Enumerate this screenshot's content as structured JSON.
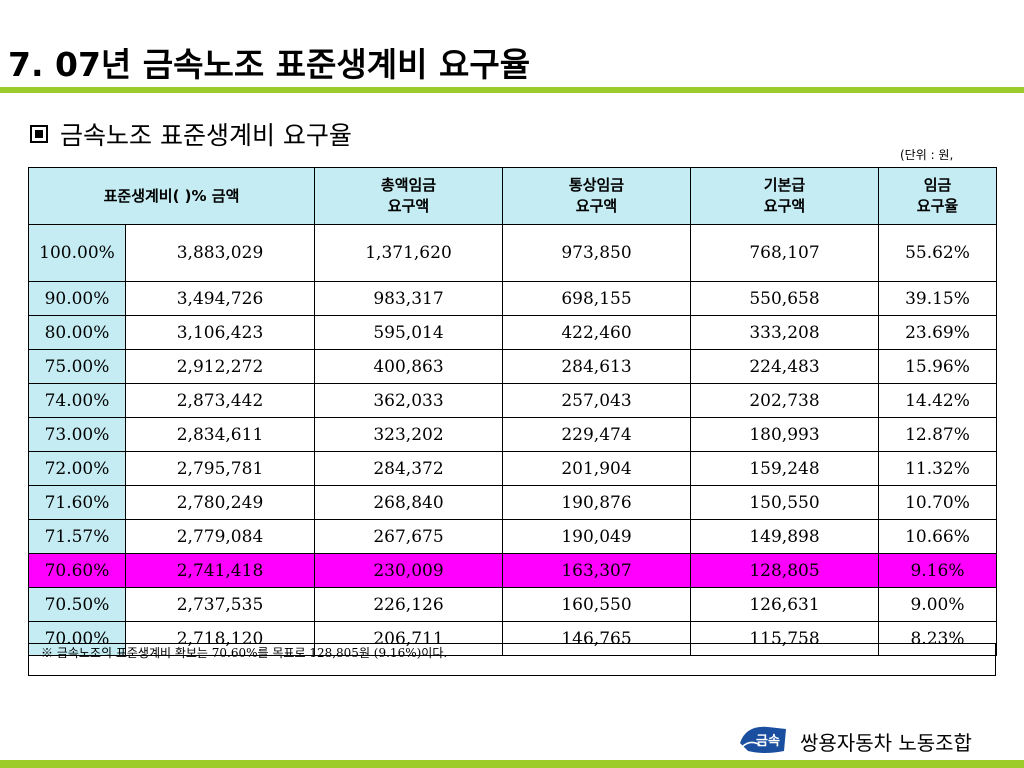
{
  "page_title": "7. 07년 금속노조 표준생계비 요구율",
  "subtitle": "금속노조 표준생계비 요구율",
  "unit_note": "(단위 : 원, %)",
  "table": {
    "headers": {
      "standard": "표준생계비( )% 금액",
      "total_wage": "총액임금\n요구액",
      "ordinary_wage": "통상임금\n요구액",
      "base_pay": "기본급\n요구액",
      "rate": "임금\n요구율"
    },
    "rows": [
      {
        "pct": "100.00%",
        "amount": "3,883,029",
        "total": "1,371,620",
        "ordinary": "973,850",
        "base": "768,107",
        "rate": "55.62%"
      },
      {
        "pct": "90.00%",
        "amount": "3,494,726",
        "total": "983,317",
        "ordinary": "698,155",
        "base": "550,658",
        "rate": "39.15%"
      },
      {
        "pct": "80.00%",
        "amount": "3,106,423",
        "total": "595,014",
        "ordinary": "422,460",
        "base": "333,208",
        "rate": "23.69%"
      },
      {
        "pct": "75.00%",
        "amount": "2,912,272",
        "total": "400,863",
        "ordinary": "284,613",
        "base": "224,483",
        "rate": "15.96%"
      },
      {
        "pct": "74.00%",
        "amount": "2,873,442",
        "total": "362,033",
        "ordinary": "257,043",
        "base": "202,738",
        "rate": "14.42%"
      },
      {
        "pct": "73.00%",
        "amount": "2,834,611",
        "total": "323,202",
        "ordinary": "229,474",
        "base": "180,993",
        "rate": "12.87%"
      },
      {
        "pct": "72.00%",
        "amount": "2,795,781",
        "total": "284,372",
        "ordinary": "201,904",
        "base": "159,248",
        "rate": "11.32%"
      },
      {
        "pct": "71.60%",
        "amount": "2,780,249",
        "total": "268,840",
        "ordinary": "190,876",
        "base": "150,550",
        "rate": "10.70%"
      },
      {
        "pct": "71.57%",
        "amount": "2,779,084",
        "total": "267,675",
        "ordinary": "190,049",
        "base": "149,898",
        "rate": "10.66%"
      },
      {
        "pct": "70.60%",
        "amount": "2,741,418",
        "total": "230,009",
        "ordinary": "163,307",
        "base": "128,805",
        "rate": "9.16%",
        "highlight": true
      },
      {
        "pct": "70.50%",
        "amount": "2,737,535",
        "total": "226,126",
        "ordinary": "160,550",
        "base": "126,631",
        "rate": "9.00%"
      },
      {
        "pct": "70.00%",
        "amount": "2,718,120",
        "total": "206,711",
        "ordinary": "146,765",
        "base": "115,758",
        "rate": "8.23%"
      }
    ]
  },
  "footnote": "※ 금속노조의 표준생계비 확보는 70.60%를 목표로 128,805원 (9.16%)이다.",
  "logo_text": "금속",
  "org_name": "쌍용자동차 노동조합",
  "colors": {
    "accent_green": "#9ccc2c",
    "header_cyan": "#c4ecf2",
    "highlight_magenta": "#ff00ff",
    "logo_blue": "#1a4fa0"
  }
}
